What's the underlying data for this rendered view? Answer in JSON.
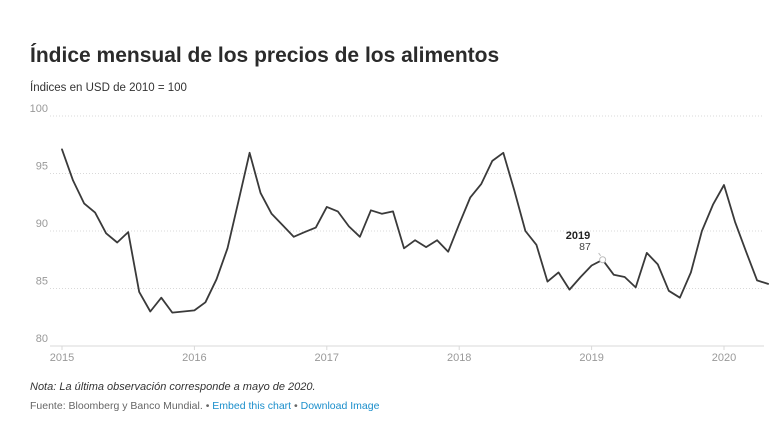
{
  "title": "Índice mensual de los precios de los alimentos",
  "subtitle": "Índices en USD de 2010 = 100",
  "note": "Nota: La última observación corresponde a mayo de 2020.",
  "footer": {
    "source": "Fuente: Bloomberg y Banco Mundial.",
    "separator": "•",
    "embed_link": "Embed this chart",
    "download_link": "Download Image"
  },
  "colors": {
    "line": "#3a3a3a",
    "grid": "#d9d9d9",
    "tick": "#999999",
    "link": "#1a8ecb"
  },
  "chart_data": {
    "type": "line",
    "title": "Índice mensual de los precios de los alimentos",
    "subtitle": "Índices en USD de 2010 = 100",
    "xlabel": "",
    "ylabel": "",
    "ylim": [
      80,
      100
    ],
    "grid": true,
    "x_start": "2015-01",
    "x_ticks": [
      "2015",
      "2016",
      "2017",
      "2018",
      "2019",
      "2020"
    ],
    "y_ticks": [
      80,
      85,
      90,
      95,
      100
    ],
    "series": [
      {
        "values": [
          97.1,
          94.4,
          92.4,
          91.6,
          89.8,
          89.0,
          89.9,
          84.7,
          83.0,
          84.2,
          82.9,
          83.0,
          83.1,
          83.8,
          85.8,
          88.5,
          92.6,
          96.8,
          93.3,
          91.5,
          90.5,
          89.5,
          89.9,
          90.3,
          92.1,
          91.7,
          90.4,
          89.5,
          91.8,
          91.5,
          91.7,
          88.5,
          89.2,
          88.6,
          89.2,
          88.2,
          90.6,
          92.9,
          94.1,
          96.1,
          96.8,
          93.5,
          90.0,
          88.8,
          85.6,
          86.4,
          84.9,
          86.0,
          87.0,
          87.5,
          86.2,
          86.0,
          85.1,
          88.1,
          87.1,
          84.8,
          84.2,
          86.4,
          90.0,
          92.3,
          94.0,
          90.8,
          88.2,
          85.7,
          85.4
        ]
      }
    ],
    "annotation": {
      "label": "2019",
      "value": "87"
    }
  }
}
